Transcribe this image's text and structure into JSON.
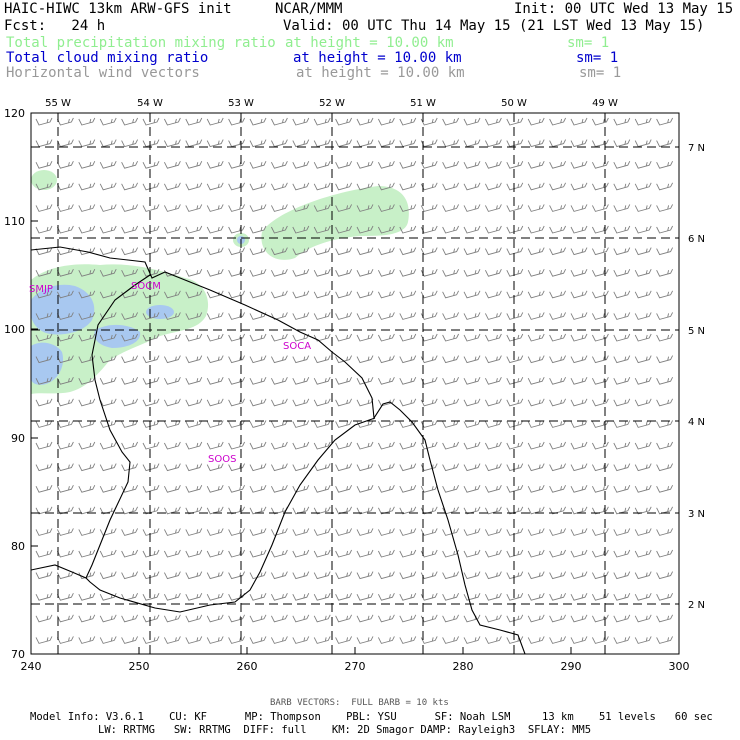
{
  "header": {
    "title_left": "HAIC-HIWC 13km ARW-GFS init",
    "title_center": "NCAR/MMM",
    "init": "Init: 00 UTC Wed 13 May 15",
    "fcst": "Fcst:   24 h",
    "valid": "Valid: 00 UTC Thu 14 May 15 (21 LST Wed 13 May 15)",
    "fields": [
      {
        "name": "Total precipitation mixing ratio",
        "height": "at height = 10.00 km",
        "sm": "sm= 1",
        "color": "#90ee90"
      },
      {
        "name": "Total cloud mixing ratio",
        "height": "at height = 10.00 km",
        "sm": "sm= 1",
        "color": "#0000cd"
      },
      {
        "name": "Horizontal wind vectors",
        "height": "at height = 10.00 km",
        "sm": "sm= 1",
        "color": "#999999"
      }
    ]
  },
  "map": {
    "left_axis": [
      "120",
      "110",
      "100",
      "90",
      "80",
      "70"
    ],
    "bottom_axis": [
      "240",
      "250",
      "260",
      "270",
      "280",
      "290",
      "300"
    ],
    "top_lon_labels": [
      "55 W",
      "54 W",
      "53 W",
      "52 W",
      "51 W",
      "50 W",
      "49 W"
    ],
    "right_lat_labels": [
      "7 N",
      "6 N",
      "5 N",
      "4 N",
      "3 N",
      "2 N"
    ],
    "stations": [
      {
        "id": "SMJP",
        "color": "#cc00cc"
      },
      {
        "id": "SOCM",
        "color": "#cc00cc"
      },
      {
        "id": "SOCA",
        "color": "#cc00cc"
      },
      {
        "id": "SOOS",
        "color": "#cc00cc"
      }
    ],
    "colors": {
      "precip": "#c8f0c8",
      "cloud": "#a8c8f0",
      "barb": "#808080",
      "coast": "#000000"
    }
  },
  "footer": {
    "barb_note": "BARB VECTORS:  FULL BARB = 10 kts",
    "model_line1": "Model Info: V3.6.1    CU: KF      MP: Thompson    PBL: YSU      SF: Noah LSM     13 km    51 levels   60 sec",
    "model_line2": "LW: RRTMG   SW: RRTMG  DIFF: full    KM: 2D Smagor DAMP: Rayleigh3  SFLAY: MM5"
  }
}
